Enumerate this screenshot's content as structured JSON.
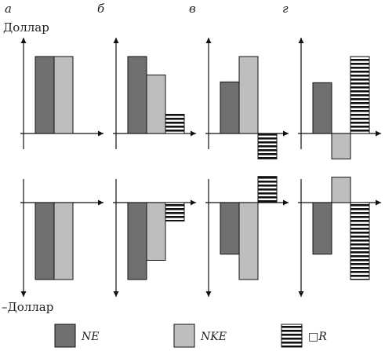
{
  "labels": {
    "top_axis": "Доллар",
    "bottom_axis": "–Доллар"
  },
  "colors": {
    "NE": "#707070",
    "NKE": "#bebebe",
    "R_stripe_dark": "#111111",
    "R_stripe_light": "#ffffff",
    "axis": "#111111"
  },
  "legend": [
    {
      "key": "NE",
      "label": "NE"
    },
    {
      "key": "NKE",
      "label": "NKE"
    },
    {
      "key": "R",
      "label": "□R"
    }
  ],
  "panels": [
    {
      "letter": "а",
      "top": [
        {
          "key": "NE",
          "value": 100
        },
        {
          "key": "NKE",
          "value": 100
        }
      ],
      "bottom": [
        {
          "key": "NE",
          "value": -100
        },
        {
          "key": "NKE",
          "value": -100
        }
      ]
    },
    {
      "letter": "б",
      "top": [
        {
          "key": "NE",
          "value": 100
        },
        {
          "key": "NKE",
          "value": 76
        },
        {
          "key": "R",
          "value": 25
        }
      ],
      "bottom": [
        {
          "key": "NE",
          "value": -100
        },
        {
          "key": "NKE",
          "value": -75
        },
        {
          "key": "R",
          "value": -24
        }
      ]
    },
    {
      "letter": "в",
      "top": [
        {
          "key": "NE",
          "value": 67
        },
        {
          "key": "NKE",
          "value": 100
        },
        {
          "key": "R",
          "value": -33
        }
      ],
      "bottom": [
        {
          "key": "NE",
          "value": -67
        },
        {
          "key": "NKE",
          "value": -100
        },
        {
          "key": "R",
          "value": 34
        }
      ]
    },
    {
      "letter": "г",
      "top": [
        {
          "key": "NE",
          "value": 66
        },
        {
          "key": "NKE",
          "value": -33
        },
        {
          "key": "R",
          "value": 100
        }
      ],
      "bottom": [
        {
          "key": "NE",
          "value": -67
        },
        {
          "key": "NKE",
          "value": 33
        },
        {
          "key": "R",
          "value": -100
        }
      ]
    }
  ]
}
